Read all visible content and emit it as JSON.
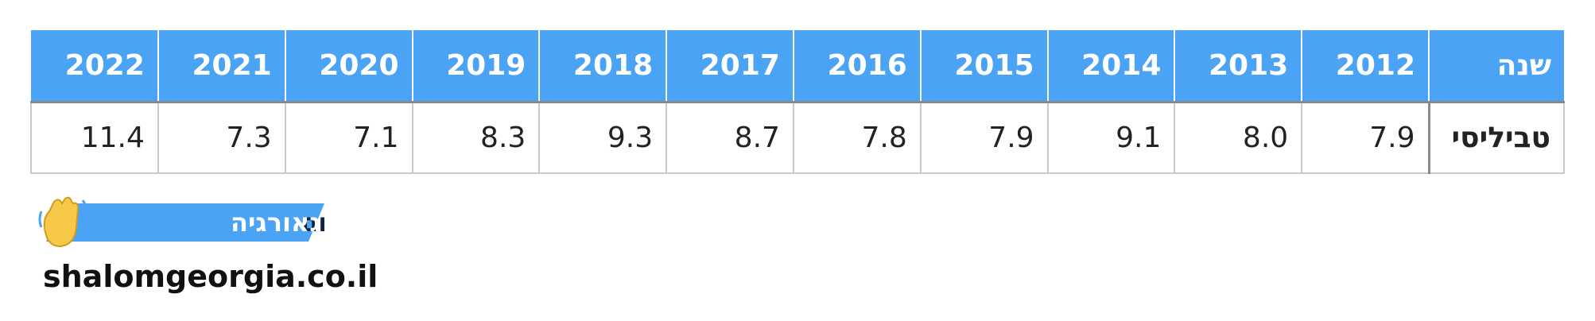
{
  "table": {
    "header": [
      "שנה",
      "2012",
      "2013",
      "2014",
      "2015",
      "2016",
      "2017",
      "2018",
      "2019",
      "2020",
      "2021",
      "2022"
    ],
    "rows": [
      [
        "טביליסי",
        "7.9",
        "8.0",
        "9.1",
        "7.9",
        "7.8",
        "8.7",
        "9.3",
        "8.3",
        "7.1",
        "7.3",
        "11.4"
      ]
    ]
  },
  "logo": {
    "word1": "שלום",
    "word2": "גאורגיה"
  },
  "footer": {
    "url": "shalomgeorgia.co.il"
  }
}
